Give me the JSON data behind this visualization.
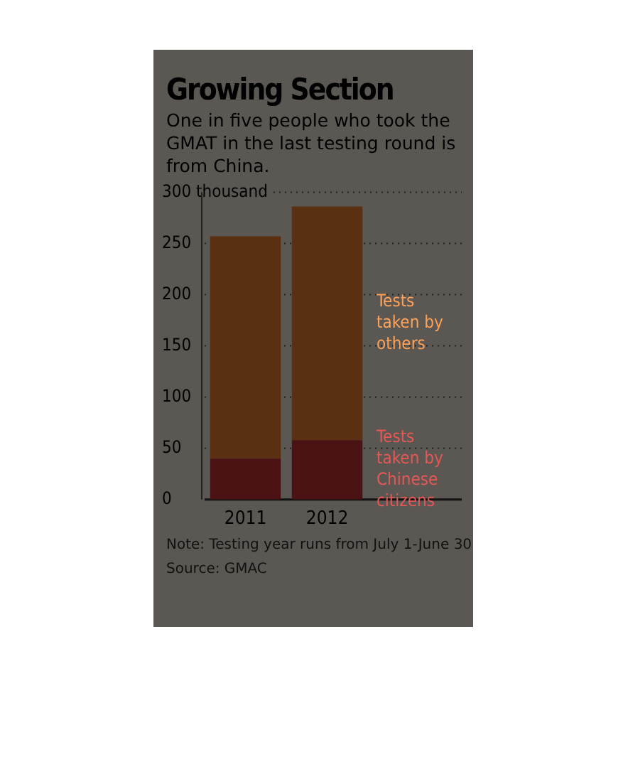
{
  "chart_data": {
    "type": "bar",
    "title": "Growing Section",
    "subtitle": "One in five people who took the GMAT in the last testing round is from China.",
    "categories": [
      "2011",
      "2012"
    ],
    "stacked": true,
    "series": [
      {
        "name": "Tests taken by Chinese citizens",
        "color": "#4a1212",
        "values": [
          40,
          58
        ]
      },
      {
        "name": "Tests taken by others",
        "color": "#5a2f12",
        "values": [
          217,
          228
        ]
      }
    ],
    "ylim": [
      0,
      300
    ],
    "yticks": [
      0,
      50,
      100,
      150,
      200,
      250,
      {
        "value": 300,
        "label": "300 thousand"
      }
    ],
    "grid": "y",
    "legend": false,
    "annotations": [
      "Note: Testing year runs from July 1-June 30",
      "Source: GMAC"
    ]
  }
}
